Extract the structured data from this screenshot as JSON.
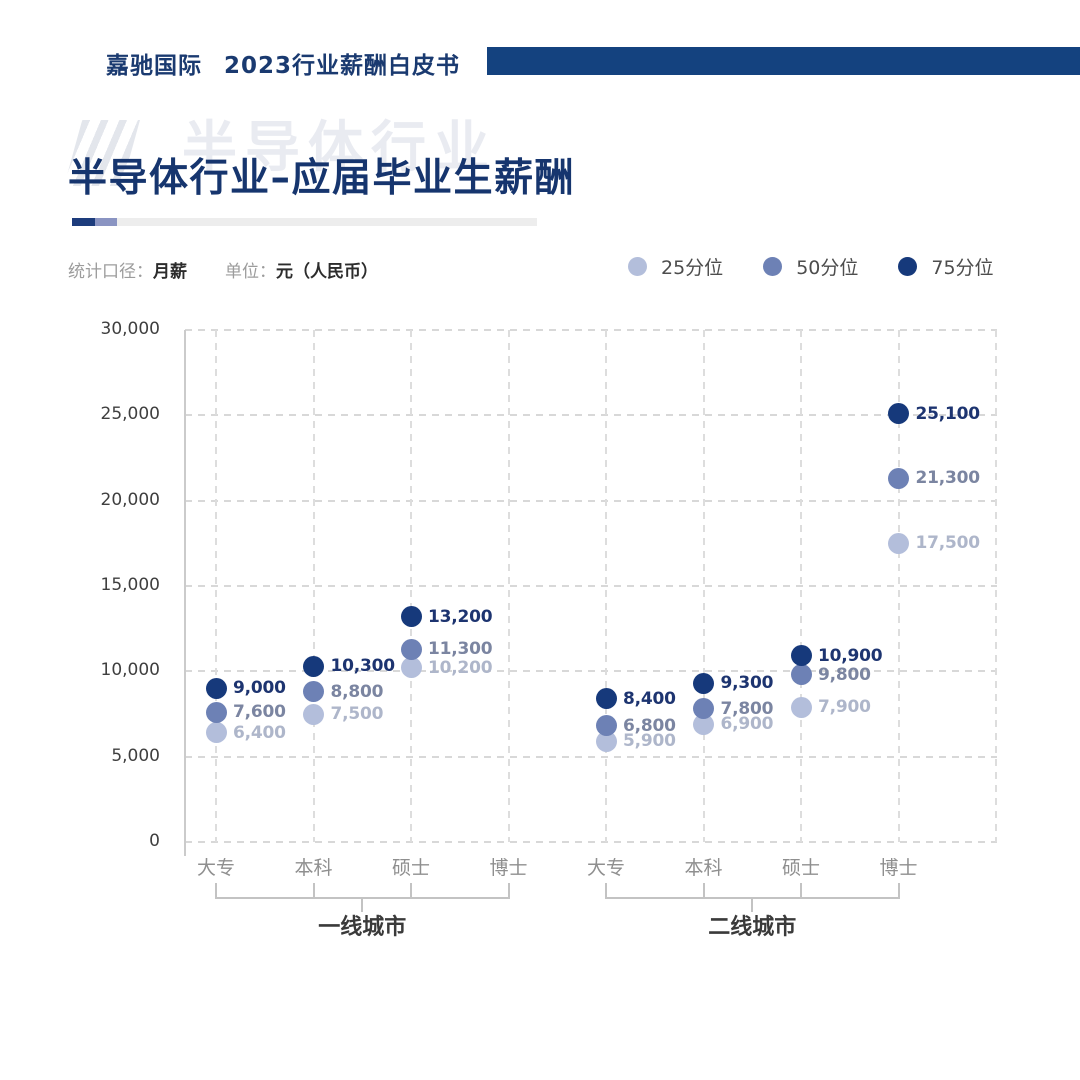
{
  "header": {
    "brand": "嘉驰国际",
    "doc_title": "2023行业薪酬白皮书"
  },
  "title": {
    "text": "半导体行业–应届毕业生薪酬",
    "watermark": "半导体行业"
  },
  "meta": {
    "caliber_label": "统计口径：",
    "caliber_value": "月薪",
    "unit_label": "单位：",
    "unit_value": "元（人民币）"
  },
  "colors": {
    "header_bar": "#14427f",
    "title_text": "#16356e",
    "p25": "#b3bedb",
    "p50": "#6d81b5",
    "p75": "#16397b"
  },
  "chart_data": {
    "type": "scatter",
    "title": "半导体行业–应届毕业生薪酬",
    "measure": "月薪",
    "unit": "元（人民币）",
    "ylim": [
      0,
      30000
    ],
    "y_ticks": [
      0,
      5000,
      10000,
      15000,
      20000,
      25000,
      30000
    ],
    "grid": true,
    "legend_position": "top-right",
    "categories": [
      "大专",
      "本科",
      "硕士",
      "博士",
      "大专",
      "本科",
      "硕士",
      "博士"
    ],
    "groups": [
      {
        "label": "一线城市",
        "from": 0,
        "to": 3
      },
      {
        "label": "二线城市",
        "from": 4,
        "to": 7
      }
    ],
    "series": [
      {
        "name": "25分位",
        "color": "#b3bedb",
        "label_color": "#aeb6ca",
        "values": [
          6400,
          7500,
          10200,
          null,
          5900,
          6900,
          7900,
          17500
        ]
      },
      {
        "name": "50分位",
        "color": "#6d81b5",
        "label_color": "#7b85a1",
        "values": [
          7600,
          8800,
          11300,
          null,
          6800,
          7800,
          9800,
          21300
        ]
      },
      {
        "name": "75分位",
        "color": "#16397b",
        "label_color": "#1d3470",
        "values": [
          9000,
          10300,
          13200,
          null,
          8400,
          9300,
          10900,
          25100
        ]
      }
    ]
  }
}
